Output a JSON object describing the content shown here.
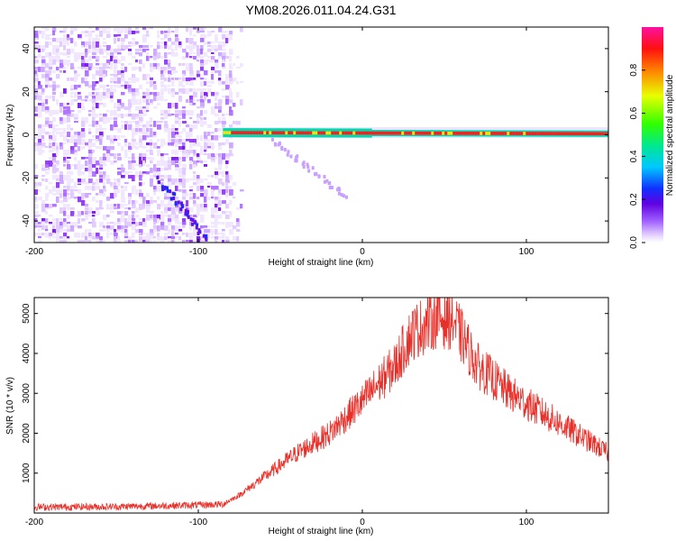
{
  "title": "YM08.2026.011.04.24.G31",
  "chart_data": [
    {
      "type": "heatmap",
      "xlabel": "Height of straight line (km)",
      "ylabel": "Frequency (Hz)",
      "xlim": [
        -200,
        150
      ],
      "ylim": [
        -50,
        50
      ],
      "xticks": [
        -200,
        -100,
        0,
        100
      ],
      "yticks": [
        -40,
        -20,
        0,
        20,
        40
      ],
      "colorbar": {
        "label": "Normalized spectral amplitude",
        "range": [
          0.0,
          1.0
        ],
        "ticks": [
          0.0,
          0.2,
          0.4,
          0.6,
          0.8
        ]
      },
      "noise_region": {
        "x": [
          -200,
          -80
        ],
        "y": [
          -50,
          50
        ],
        "amplitude": 0.15
      },
      "features": [
        {
          "kind": "line",
          "x": [
            -85,
            150
          ],
          "y": [
            1.0,
            0.5
          ],
          "amplitude": 0.95
        },
        {
          "kind": "streak",
          "x": [
            -125,
            -95
          ],
          "y": [
            -20,
            -48
          ],
          "amplitude": 0.3
        },
        {
          "kind": "streak",
          "x": [
            -55,
            -10
          ],
          "y": [
            -2,
            -28
          ],
          "amplitude": 0.15
        }
      ]
    },
    {
      "type": "line",
      "xlabel": "Height of straight line (km)",
      "ylabel": "SNR (10 * v/v)",
      "xlim": [
        -200,
        150
      ],
      "ylim": [
        0,
        5400
      ],
      "xticks": [
        -200,
        -100,
        0,
        100
      ],
      "yticks": [
        1000,
        2000,
        3000,
        4000,
        5000
      ],
      "series": [
        {
          "color": "#e8302a",
          "envelope": {
            "x": [
              -200,
              -150,
              -100,
              -85,
              -75,
              -60,
              -40,
              -20,
              0,
              20,
              30,
              45,
              55,
              70,
              90,
              110,
              130,
              150
            ],
            "y": [
              150,
              160,
              200,
              220,
              450,
              900,
              1500,
              2000,
              2800,
              3700,
              4500,
              4900,
              4850,
              3700,
              3000,
              2500,
              2000,
              1500
            ]
          }
        }
      ]
    }
  ]
}
